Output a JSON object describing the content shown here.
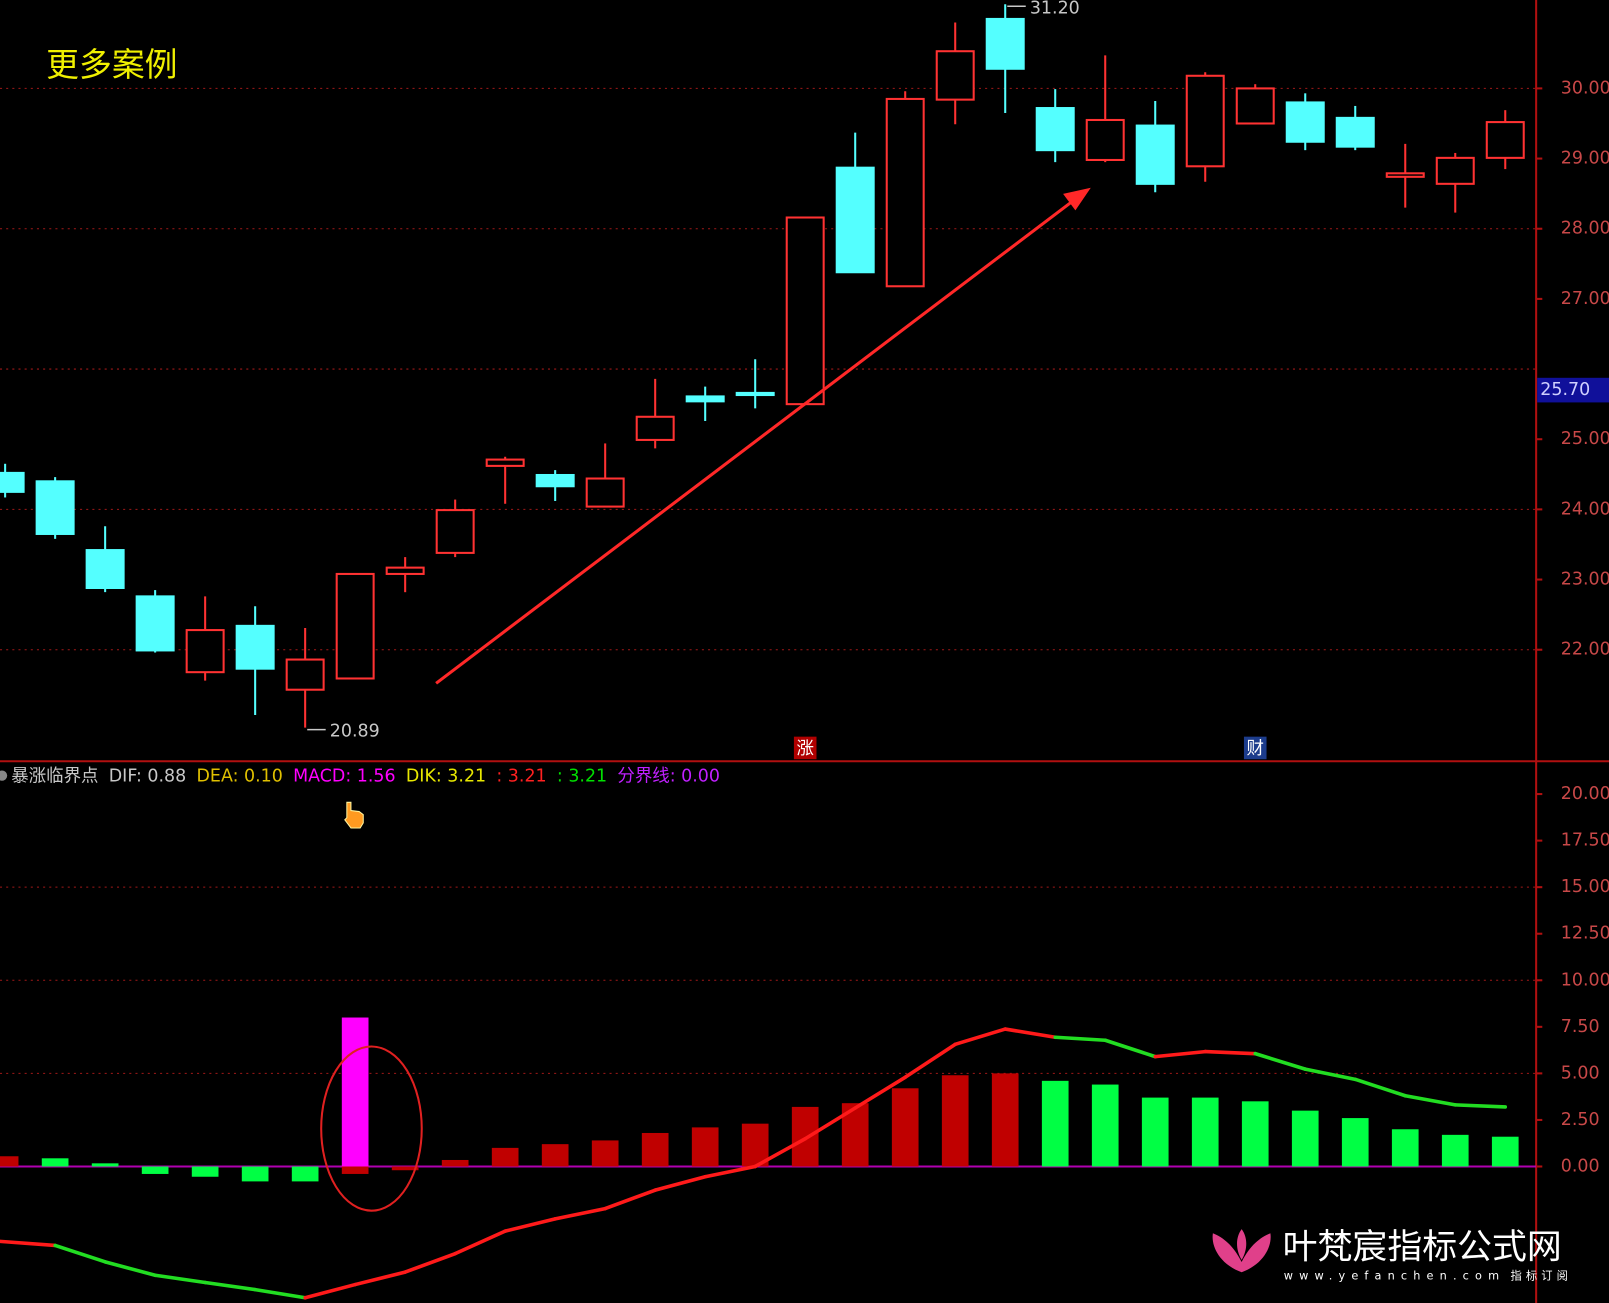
{
  "header": {
    "title": "更多案例"
  },
  "chart_data": [
    {
      "type": "candlestick",
      "open": [
        24.52,
        24.4,
        23.42,
        22.76,
        21.68,
        22.34,
        21.43,
        21.59,
        23.08,
        23.38,
        24.62,
        24.49,
        24.04,
        24.99,
        25.61,
        25.66,
        25.5,
        28.87,
        27.18,
        29.84,
        30.99,
        29.72,
        28.98,
        29.47,
        28.89,
        29.5,
        29.8,
        29.58,
        28.74,
        28.64,
        29.01
      ],
      "high": [
        24.65,
        24.46,
        23.76,
        22.85,
        22.76,
        22.62,
        22.31,
        23.08,
        23.32,
        24.14,
        24.75,
        24.56,
        24.94,
        25.86,
        25.75,
        26.14,
        28.16,
        29.37,
        29.96,
        30.94,
        31.2,
        29.99,
        30.47,
        29.82,
        30.23,
        30.06,
        29.93,
        29.75,
        29.21,
        29.08,
        29.69
      ],
      "low": [
        24.17,
        23.58,
        22.82,
        21.96,
        21.56,
        21.07,
        20.89,
        21.59,
        22.82,
        23.32,
        24.08,
        24.12,
        24.04,
        24.87,
        25.26,
        25.44,
        25.5,
        27.38,
        27.18,
        29.49,
        29.65,
        28.95,
        28.95,
        28.52,
        28.67,
        29.5,
        29.12,
        29.12,
        28.3,
        28.23,
        28.85
      ],
      "close": [
        24.25,
        23.65,
        22.88,
        21.99,
        22.28,
        21.73,
        21.86,
        23.08,
        23.17,
        23.99,
        24.71,
        24.33,
        24.44,
        25.32,
        25.54,
        25.63,
        28.16,
        27.38,
        29.85,
        30.53,
        30.28,
        29.12,
        29.55,
        28.64,
        30.18,
        30.0,
        29.24,
        29.17,
        28.79,
        29.01,
        29.52
      ],
      "up_color": "#ff3232",
      "down_color": "#54ffff",
      "ylim": [
        20.41,
        31.26
      ],
      "yticks": [
        {
          "value": 30,
          "label": "30.00"
        },
        {
          "value": 29,
          "label": "29.00"
        },
        {
          "value": 28,
          "label": "28.00"
        },
        {
          "value": 27,
          "label": "27.00"
        },
        {
          "value": 25,
          "label": "25.00"
        },
        {
          "value": 24,
          "label": "24.00"
        },
        {
          "value": 23,
          "label": "23.00"
        },
        {
          "value": 22,
          "label": "22.00"
        }
      ],
      "ygrid": [
        30,
        28,
        26,
        24,
        22
      ],
      "annotations": [
        {
          "index": 20,
          "value": 31.2,
          "label": "31.20"
        },
        {
          "index": 6,
          "value": 20.89,
          "label": "20.89"
        }
      ],
      "current_price": {
        "value": 25.7,
        "label": "25.70"
      },
      "markers": [
        {
          "index": 16,
          "label": "涨",
          "color": "#b00000"
        },
        {
          "index": 25,
          "label": "财",
          "color": "#1c3c8c"
        }
      ]
    },
    {
      "type": "macd",
      "legend": [
        {
          "text": "暴涨临界点",
          "color": "#c8c8c8"
        },
        {
          "text": "DIF: 0.88",
          "color": "#c8c8c8"
        },
        {
          "text": "DEA: 0.10",
          "color": "#e0c000"
        },
        {
          "text": "MACD: 1.56",
          "color": "#ff00ff"
        },
        {
          "text": "DIK: 3.21",
          "color": "#e8e800"
        },
        {
          "text": ": 3.21",
          "color": "#ff2020"
        },
        {
          "text": ": 3.21",
          "color": "#00e000"
        },
        {
          "text": "分界线: 0.00",
          "color": "#c020ff"
        }
      ],
      "histogram": {
        "values": [
          0.55,
          0.44,
          0.17,
          -0.4,
          -0.55,
          -0.8,
          -0.8,
          -0.4,
          -0.2,
          0.35,
          1.0,
          1.2,
          1.4,
          1.8,
          2.1,
          2.3,
          3.2,
          3.4,
          4.2,
          4.9,
          5.0,
          4.6,
          4.4,
          3.7,
          3.7,
          3.5,
          3.0,
          2.6,
          2.0,
          1.7,
          1.6
        ],
        "colors": [
          "#c00000",
          "#00ff44",
          "#00ff44",
          "#00ff44",
          "#00ff44",
          "#00ff44",
          "#00ff44",
          "#c00000",
          "#c00000",
          "#c00000",
          "#c00000",
          "#c00000",
          "#c00000",
          "#c00000",
          "#c00000",
          "#c00000",
          "#c00000",
          "#c00000",
          "#c00000",
          "#c00000",
          "#c00000",
          "#00ff44",
          "#00ff44",
          "#00ff44",
          "#00ff44",
          "#00ff44",
          "#00ff44",
          "#00ff44",
          "#00ff44",
          "#00ff44",
          "#00ff44"
        ]
      },
      "signal": {
        "color": "#ff00ff",
        "values": [
          null,
          null,
          null,
          null,
          null,
          null,
          null,
          8.0,
          null,
          null,
          null,
          null,
          null,
          null,
          null,
          null,
          null,
          null,
          null,
          null,
          null,
          null,
          null,
          null,
          null,
          null,
          null,
          null,
          null,
          null,
          null
        ]
      },
      "line": {
        "values": [
          -4.02,
          -4.24,
          -5.12,
          -5.84,
          -6.23,
          -6.61,
          -7.05,
          -6.34,
          -5.67,
          -4.68,
          -3.47,
          -2.81,
          -2.26,
          -1.27,
          -0.55,
          0,
          1.49,
          3.14,
          4.79,
          6.56,
          7.38,
          6.94,
          6.78,
          5.9,
          6.17,
          6.06,
          5.23,
          4.68,
          3.8,
          3.31,
          3.2
        ],
        "colors": [
          "#ff1a1a",
          "#ff1a1a",
          "#22dd22",
          "#22dd22",
          "#22dd22",
          "#22dd22",
          "#22dd22",
          "#ff1a1a",
          "#ff1a1a",
          "#ff1a1a",
          "#ff1a1a",
          "#ff1a1a",
          "#ff1a1a",
          "#ff1a1a",
          "#ff1a1a",
          "#ff1a1a",
          "#ff1a1a",
          "#ff1a1a",
          "#ff1a1a",
          "#ff1a1a",
          "#ff1a1a",
          "#ff1a1a",
          "#22dd22",
          "#22dd22",
          "#ff1a1a",
          "#ff1a1a",
          "#22dd22",
          "#22dd22",
          "#22dd22",
          "#22dd22",
          "#22dd22"
        ]
      },
      "zero_color": "#b000b0",
      "ylim": [
        -7.33,
        21.76
      ],
      "yticks": [
        {
          "value": 20,
          "label": "20.00"
        },
        {
          "value": 17.5,
          "label": "17.50"
        },
        {
          "value": 15,
          "label": "15.00"
        },
        {
          "value": 12.5,
          "label": "12.50"
        },
        {
          "value": 10,
          "label": "10.00"
        },
        {
          "value": 7.5,
          "label": "7.50"
        },
        {
          "value": 5,
          "label": "5.00"
        },
        {
          "value": 2.5,
          "label": "2.50"
        },
        {
          "value": 0,
          "label": "0.00"
        }
      ],
      "ygrid": [
        15,
        10,
        5
      ]
    }
  ],
  "watermark": {
    "name": "叶梵宸指标公式网",
    "url": "www.yefanchen.com",
    "tag": "指标订阅"
  }
}
